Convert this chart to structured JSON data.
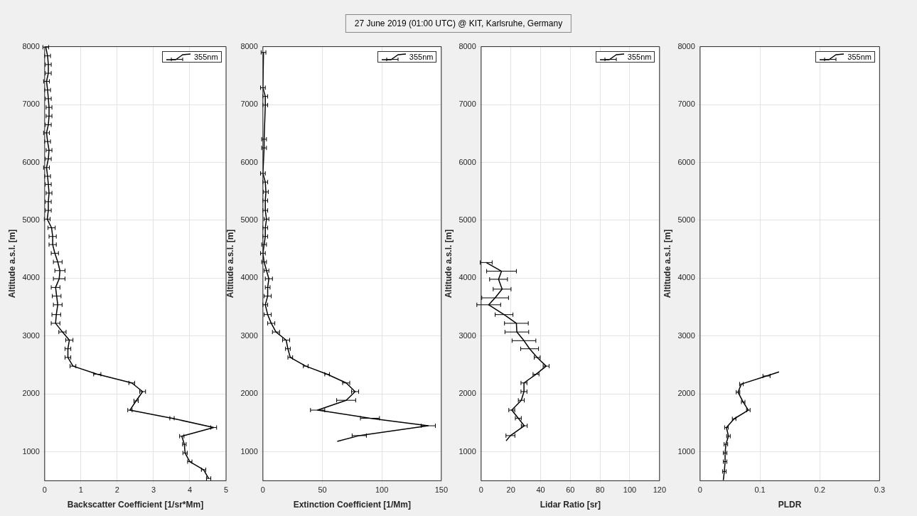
{
  "chart_data": [
    {
      "type": "line",
      "xlabel": "Backscatter Coefficient [1/sr*Mm]",
      "ylabel": "Altitude a.s.l. [m]",
      "xlim": [
        0,
        5
      ],
      "xticks": [
        0,
        1,
        2,
        3,
        4,
        5
      ],
      "ylim": [
        500,
        8000
      ],
      "yticks": [
        1000,
        2000,
        3000,
        4000,
        5000,
        6000,
        7000,
        8000
      ],
      "grid": true,
      "legend": "top right",
      "line_style": "solid",
      "series": [
        {
          "name": "355nm",
          "color": "#000000",
          "x": [
            4.52,
            4.38,
            4.0,
            3.87,
            3.85,
            3.78,
            4.66,
            3.51,
            2.35,
            2.52,
            2.7,
            2.4,
            1.45,
            0.78,
            0.64,
            0.64,
            0.68,
            0.49,
            0.3,
            0.32,
            0.36,
            0.33,
            0.3,
            0.4,
            0.42,
            0.36,
            0.28,
            0.22,
            0.22,
            0.19,
            0.07,
            0.1,
            0.1,
            0.12,
            0.1,
            0.08,
            0.05,
            0.1,
            0.12,
            0.08,
            0.05,
            0.1,
            0.12,
            0.12,
            0.1,
            0.08,
            0.05,
            0.1,
            0.1,
            0.08,
            0.03
          ],
          "values": [
            540,
            690,
            830,
            980,
            1130,
            1270,
            1420,
            1580,
            1720,
            1880,
            2040,
            2190,
            2340,
            2480,
            2630,
            2780,
            2930,
            3070,
            3220,
            3370,
            3540,
            3690,
            3840,
            3990,
            4130,
            4280,
            4430,
            4580,
            4720,
            4870,
            5020,
            5170,
            5320,
            5470,
            5620,
            5760,
            5910,
            6060,
            6210,
            6360,
            6510,
            6650,
            6800,
            6950,
            7100,
            7250,
            7400,
            7540,
            7690,
            7840,
            7990
          ],
          "xerrors": [
            0.06,
            0.06,
            0.06,
            0.06,
            0.05,
            0.06,
            0.08,
            0.06,
            0.06,
            0.06,
            0.08,
            0.08,
            0.1,
            0.08,
            0.08,
            0.08,
            0.1,
            0.1,
            0.12,
            0.12,
            0.12,
            0.12,
            0.12,
            0.16,
            0.14,
            0.12,
            0.1,
            0.1,
            0.1,
            0.1,
            0.08,
            0.08,
            0.08,
            0.08,
            0.08,
            0.08,
            0.08,
            0.08,
            0.08,
            0.08,
            0.08,
            0.08,
            0.08,
            0.08,
            0.08,
            0.08,
            0.08,
            0.08,
            0.08,
            0.08,
            0.08
          ]
        }
      ]
    },
    {
      "type": "line",
      "xlabel": "Extinction Coefficient [1/Mm]",
      "ylabel": "Altitude a.s.l. [m]",
      "xlim": [
        0,
        150
      ],
      "xticks": [
        0,
        50,
        100,
        150
      ],
      "ylim": [
        500,
        8000
      ],
      "yticks": [
        1000,
        2000,
        3000,
        4000,
        5000,
        6000,
        7000,
        8000
      ],
      "grid": true,
      "legend": "top right",
      "line_style": "solid",
      "series": [
        {
          "name": "355nm",
          "color": "#000000",
          "x": [
            62.5,
            81,
            139,
            90,
            46,
            70,
            77.5,
            70,
            54,
            36,
            23,
            21,
            19.5,
            11,
            7,
            4,
            2,
            4,
            4,
            5,
            3,
            1,
            0,
            1,
            2,
            2,
            3,
            2,
            2,
            2.5,
            2,
            0,
            1,
            1,
            2,
            2,
            0,
            0.5
          ],
          "values": [
            1180,
            1280,
            1450,
            1580,
            1720,
            1890,
            2040,
            2190,
            2340,
            2480,
            2630,
            2780,
            2930,
            3070,
            3220,
            3370,
            3540,
            3690,
            3840,
            3990,
            4130,
            4280,
            4430,
            4580,
            4720,
            4870,
            5020,
            5170,
            5340,
            5490,
            5660,
            5810,
            6250,
            6400,
            6990,
            7140,
            7290,
            7900
          ],
          "xerrors": [
            null,
            6,
            6,
            8,
            6,
            8,
            3,
            3,
            2,
            2,
            2,
            2,
            3,
            3,
            3,
            3,
            2,
            3,
            2,
            3,
            2,
            2,
            2,
            2,
            2,
            2,
            2,
            2,
            2,
            2,
            2,
            2,
            2,
            2,
            2,
            2,
            2,
            2
          ]
        }
      ]
    },
    {
      "type": "line",
      "title": "27 June 2019 (01:00 UTC) @ KIT, Karlsruhe, Germany",
      "xlabel": "Lidar Ratio [sr]",
      "ylabel": "Altitude a.s.l. [m]",
      "xlim": [
        0,
        120
      ],
      "xticks": [
        0,
        20,
        40,
        60,
        80,
        100,
        120
      ],
      "ylim": [
        500,
        8000
      ],
      "yticks": [
        1000,
        2000,
        3000,
        4000,
        5000,
        6000,
        7000,
        8000
      ],
      "grid": true,
      "legend": "top right",
      "line_style": "solid",
      "series": [
        {
          "name": "355nm",
          "color": "#000000",
          "x": [
            16.8,
            19.7,
            29,
            25,
            20.6,
            27,
            28.8,
            28.8,
            36.9,
            43.7,
            37.7,
            32.6,
            28.8,
            24,
            23.7,
            15.4,
            5.1,
            9.4,
            14.1,
            11.7,
            13.7,
            3.4
          ],
          "values": [
            1190,
            1280,
            1450,
            1580,
            1720,
            1890,
            2040,
            2190,
            2340,
            2480,
            2630,
            2780,
            2920,
            3070,
            3220,
            3370,
            3540,
            3660,
            3810,
            3980,
            4120,
            4270
          ],
          "xerrors": [
            null,
            3,
            2,
            2,
            2,
            2,
            2,
            2,
            2,
            2,
            2,
            6,
            8,
            8,
            8,
            6,
            8,
            9,
            6,
            6,
            10,
            4
          ]
        }
      ]
    },
    {
      "type": "line",
      "xlabel": "PLDR",
      "ylabel": "Altitude a.s.l. [m]",
      "xlim": [
        0,
        0.3
      ],
      "xticks": [
        0,
        0.1,
        0.2,
        0.3
      ],
      "ylim": [
        500,
        8000
      ],
      "yticks": [
        1000,
        2000,
        3000,
        4000,
        5000,
        6000,
        7000,
        8000
      ],
      "grid": true,
      "legend": "top right",
      "line_style": "solid",
      "series": [
        {
          "name": "355nm",
          "color": "#000000",
          "x": [
            0.0388,
            0.0405,
            0.0418,
            0.0418,
            0.0431,
            0.0474,
            0.044,
            0.0569,
            0.0806,
            0.072,
            0.0634,
            0.069,
            0.111,
            0.132
          ],
          "values": [
            510,
            660,
            830,
            980,
            1130,
            1270,
            1420,
            1570,
            1720,
            1860,
            2030,
            2170,
            2310,
            2380
          ],
          "xerrors": [
            null,
            0.003,
            0.003,
            0.003,
            0.003,
            0.003,
            0.003,
            0.003,
            0.003,
            0.003,
            0.003,
            0.003,
            0.006,
            null
          ]
        }
      ]
    }
  ]
}
